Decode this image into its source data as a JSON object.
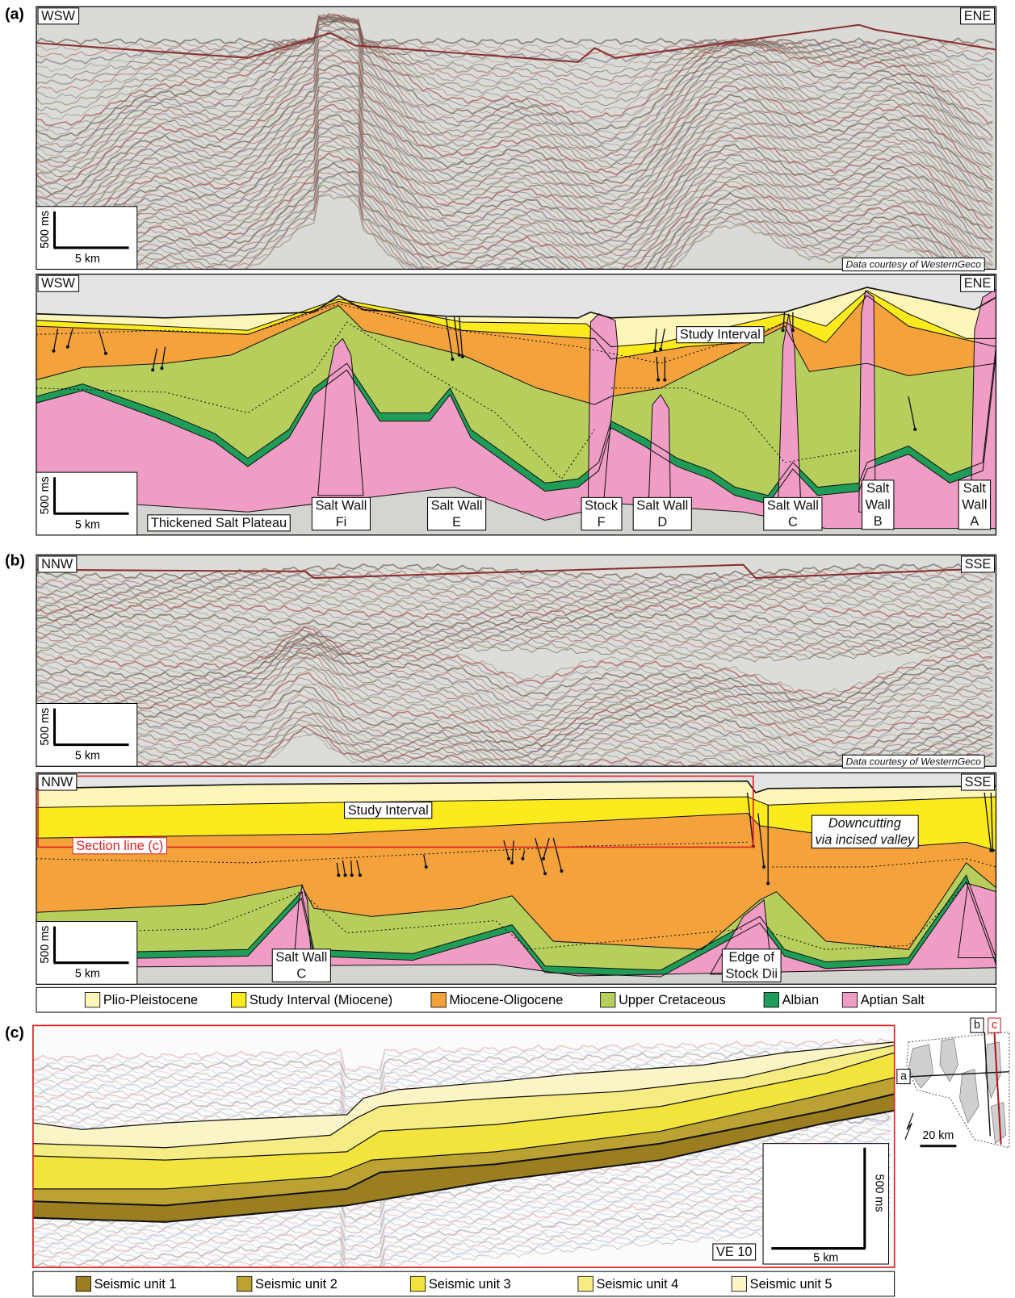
{
  "panels": [
    {
      "label": "(a)",
      "seismic": {
        "left": "WSW",
        "right": "ENE",
        "scale_time": "500 ms",
        "scale_distance": "5 km",
        "credit": "Data courtesy of WesternGeco"
      },
      "interpretation": {
        "left": "WSW",
        "right": "ENE",
        "scale_time": "500 ms",
        "scale_distance": "5 km",
        "annotations": [
          {
            "lines": [
              "Study Interval"
            ]
          },
          {
            "lines": [
              "Thickened Salt Plateau"
            ]
          },
          {
            "lines": [
              "Salt Wall",
              "Fi"
            ]
          },
          {
            "lines": [
              "Salt Wall",
              "E"
            ]
          },
          {
            "lines": [
              "Stock",
              "F"
            ]
          },
          {
            "lines": [
              "Salt Wall",
              "D"
            ]
          },
          {
            "lines": [
              "Salt Wall",
              "C"
            ]
          },
          {
            "lines": [
              "Salt",
              "Wall",
              "B"
            ]
          },
          {
            "lines": [
              "Salt",
              "Wall",
              "A"
            ]
          }
        ]
      }
    },
    {
      "label": "(b)",
      "seismic": {
        "left": "NNW",
        "right": "SSE",
        "scale_time": "500 ms",
        "scale_distance": "5 km",
        "credit": "Data courtesy of WesternGeco"
      },
      "interpretation": {
        "left": "NNW",
        "right": "SSE",
        "scale_time": "500 ms",
        "scale_distance": "5 km",
        "annotations": [
          {
            "lines": [
              "Study Interval"
            ]
          },
          {
            "lines": [
              "Section line (c)"
            ]
          },
          {
            "lines": [
              "Downcutting",
              "via incised valley"
            ]
          },
          {
            "lines": [
              "Salt Wall",
              "C"
            ]
          },
          {
            "lines": [
              "Edge of",
              "Stock Dii"
            ]
          }
        ]
      },
      "legend": {
        "items": [
          {
            "label": "Plio-Pleistocene",
            "color": "#fdf6b8"
          },
          {
            "label": "Study Interval (Miocene)",
            "color": "#fbea1e"
          },
          {
            "label": "Miocene-Oligocene",
            "color": "#f4a23c"
          },
          {
            "label": "Upper Cretaceous",
            "color": "#b6cf5c"
          },
          {
            "label": "Albian",
            "color": "#1f9d58"
          },
          {
            "label": "Aptian Salt",
            "color": "#f09dc6"
          }
        ]
      }
    },
    {
      "label": "(c)",
      "exaggeration": "VE 10",
      "scale_time": "500 ms",
      "scale_distance": "5 km",
      "inset": {
        "labels": [
          "b",
          "c",
          "a"
        ],
        "scale": "20 km"
      },
      "legend": {
        "items": [
          {
            "label": "Seismic unit 1",
            "color": "#9b7e1f"
          },
          {
            "label": "Seismic unit 2",
            "color": "#bba232"
          },
          {
            "label": "Seismic unit 3",
            "color": "#f2e43c"
          },
          {
            "label": "Seismic unit 4",
            "color": "#f6ec84"
          },
          {
            "label": "Seismic unit 5",
            "color": "#fbf4c6"
          }
        ]
      }
    }
  ]
}
